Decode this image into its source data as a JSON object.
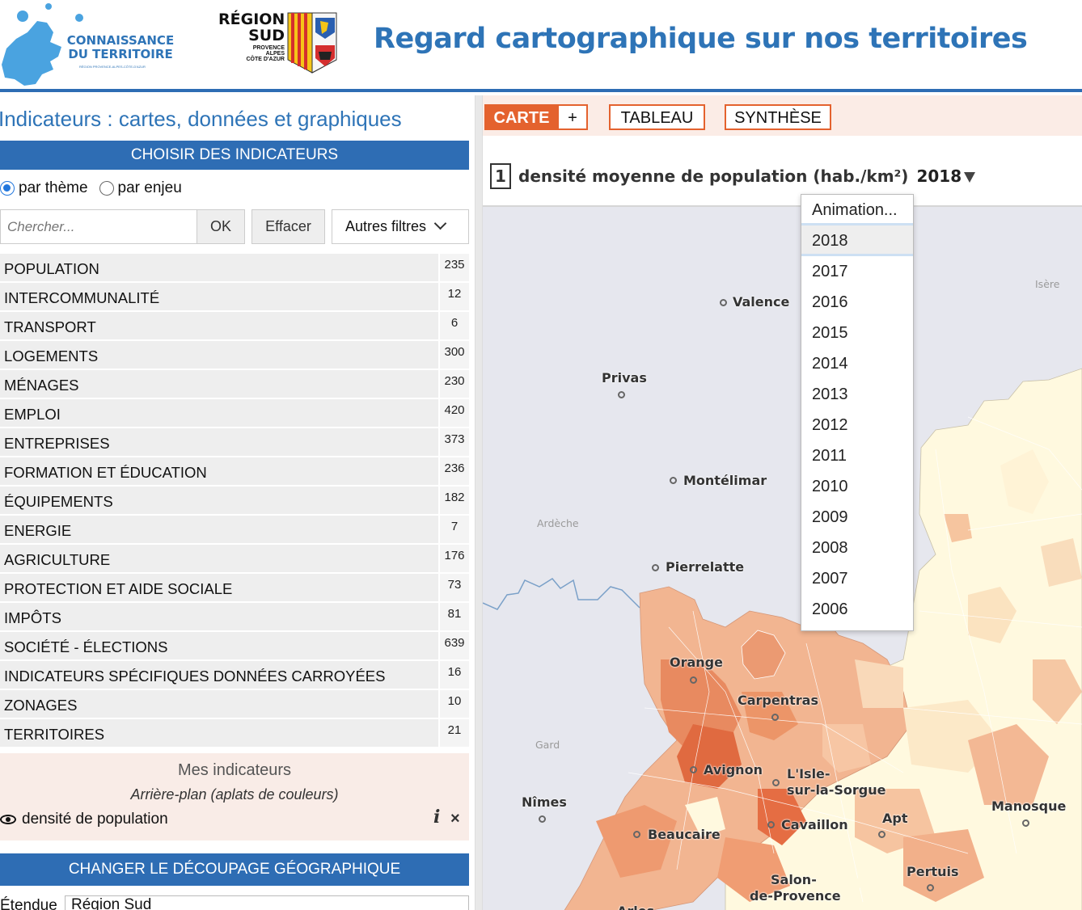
{
  "header": {
    "logo1_line1": "CONNAISSANCE",
    "logo1_line2": "DU TERRITOIRE",
    "logo1_sub": "RÉGION PROVENCE-ALPES-CÔTE-D'AZUR",
    "logo2_line1": "RÉGION",
    "logo2_line2": "SUD",
    "logo2_sub1": "PROVENCE",
    "logo2_sub2": "ALPES",
    "logo2_sub3": "CÔTE D'AZUR",
    "title": "Regard cartographique sur nos territoires"
  },
  "left": {
    "panel_title": "Indicateurs : cartes, données et graphiques",
    "choose_label": "CHOISIR DES INDICATEURS",
    "radio_theme": "par thème",
    "radio_enjeu": "par enjeu",
    "search_placeholder": "Chercher...",
    "ok_label": "OK",
    "clear_label": "Effacer",
    "filters_label": "Autres filtres",
    "themes": [
      {
        "name": "POPULATION",
        "count": "235"
      },
      {
        "name": "INTERCOMMUNALITÉ",
        "count": "12"
      },
      {
        "name": "TRANSPORT",
        "count": "6"
      },
      {
        "name": "LOGEMENTS",
        "count": "300"
      },
      {
        "name": "MÉNAGES",
        "count": "230"
      },
      {
        "name": "EMPLOI",
        "count": "420"
      },
      {
        "name": "ENTREPRISES",
        "count": "373"
      },
      {
        "name": "FORMATION ET ÉDUCATION",
        "count": "236"
      },
      {
        "name": "ÉQUIPEMENTS",
        "count": "182"
      },
      {
        "name": "ENERGIE",
        "count": "7"
      },
      {
        "name": "AGRICULTURE",
        "count": "176"
      },
      {
        "name": "PROTECTION ET AIDE SOCIALE",
        "count": "73"
      },
      {
        "name": "IMPÔTS",
        "count": "81"
      },
      {
        "name": "SOCIÉTÉ - ÉLECTIONS",
        "count": "639"
      },
      {
        "name": "INDICATEURS SPÉCIFIQUES DONNÉES CARROYÉES",
        "count": "16"
      },
      {
        "name": "ZONAGES",
        "count": "10"
      },
      {
        "name": "TERRITOIRES",
        "count": "21"
      }
    ],
    "mes_title": "Mes indicateurs",
    "mes_subtitle": "Arrière-plan (aplats de couleurs)",
    "mes_item": "densité de population",
    "mes_info": "i",
    "mes_close": "×",
    "geo_label": "CHANGER LE DÉCOUPAGE GÉOGRAPHIQUE",
    "etendue_label": "Étendue",
    "etendue_value": "Région Sud"
  },
  "right": {
    "tab_carte": "CARTE",
    "tab_plus": "+",
    "tab_tableau": "TABLEAU",
    "tab_synthese": "SYNTHÈSE",
    "indicator_number": "1",
    "indicator_label": "densité moyenne de population (hab./km²)",
    "indicator_year": "2018",
    "dropdown": {
      "animation": "Animation...",
      "selected": "2018",
      "years": [
        "2017",
        "2016",
        "2015",
        "2014",
        "2013",
        "2012",
        "2011",
        "2010",
        "2009",
        "2008",
        "2007",
        "2006"
      ]
    },
    "places": {
      "valence": "Valence",
      "privas": "Privas",
      "montelimar": "Montélimar",
      "pierrelatte": "Pierrelatte",
      "orange": "Orange",
      "carpentras": "Carpentras",
      "avignon": "Avignon",
      "isle1": "L'Isle-",
      "isle2": "sur-la-Sorgue",
      "cavaillon": "Cavaillon",
      "apt": "Apt",
      "manosque": "Manosque",
      "nimes": "Nîmes",
      "beaucaire": "Beaucaire",
      "pertuis": "Pertuis",
      "salon1": "Salon-",
      "salon2": "de-Provence",
      "arles": "Arles"
    },
    "depts": {
      "isere": "Isère",
      "ardeche": "Ardèche",
      "gard": "Gard"
    }
  },
  "colors": {
    "brand_blue": "#2e6db4",
    "accent_orange": "#e4622e"
  }
}
